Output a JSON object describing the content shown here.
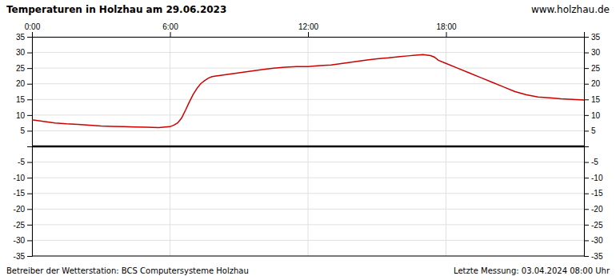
{
  "chart_data": {
    "type": "line",
    "title": "Temperaturen in Holzhau am 29.06.2023",
    "annotations": [
      "www.holzhau.de",
      "Betreiber der Wetterstation: BCS Computersysteme Holzhau",
      "Letzte Messung: 03.04.2024 08:00 Uhr"
    ],
    "x": [
      0,
      0.5,
      1,
      1.5,
      2,
      2.5,
      3,
      3.5,
      4,
      4.5,
      5,
      5.5,
      6,
      6.17,
      6.33,
      6.5,
      6.67,
      6.83,
      7.0,
      7.17,
      7.33,
      7.5,
      7.67,
      7.83,
      8.0,
      8.5,
      9,
      9.5,
      10,
      10.5,
      11,
      11.5,
      12,
      12.5,
      13,
      13.5,
      14,
      14.5,
      15,
      15.5,
      16,
      16.33,
      16.67,
      17,
      17.33,
      17.5,
      17.67,
      18,
      18.5,
      19,
      19.5,
      20,
      20.5,
      21,
      21.5,
      22,
      22.5,
      23,
      23.5,
      24
    ],
    "values": [
      8.5,
      8.0,
      7.5,
      7.2,
      7.0,
      6.8,
      6.5,
      6.4,
      6.3,
      6.2,
      6.1,
      6.0,
      6.3,
      6.8,
      7.5,
      9.0,
      11.5,
      14.0,
      16.5,
      18.5,
      20.0,
      21.0,
      21.8,
      22.3,
      22.5,
      23.0,
      23.5,
      24.0,
      24.5,
      25.0,
      25.3,
      25.5,
      25.5,
      25.8,
      26.0,
      26.5,
      27.0,
      27.5,
      28.0,
      28.3,
      28.7,
      28.9,
      29.1,
      29.3,
      29.0,
      28.5,
      27.5,
      26.5,
      25.0,
      23.5,
      22.0,
      20.5,
      19.0,
      17.5,
      16.5,
      15.8,
      15.5,
      15.2,
      15.0,
      14.8
    ],
    "color": "#cc0000",
    "xlim": [
      0,
      24
    ],
    "ylim": [
      -35,
      35
    ],
    "xticks": [
      {
        "value": 0,
        "label": "0:00"
      },
      {
        "value": 6,
        "label": "6:00"
      },
      {
        "value": 12,
        "label": "12:00"
      },
      {
        "value": 18,
        "label": "18:00"
      },
      {
        "value": 24,
        "label": null
      }
    ],
    "yticks": [
      -35,
      -30,
      -25,
      -20,
      -15,
      -10,
      -5,
      {
        "value": 0,
        "label": null
      },
      5,
      10,
      15,
      20,
      25,
      30,
      35
    ],
    "grid": true
  }
}
